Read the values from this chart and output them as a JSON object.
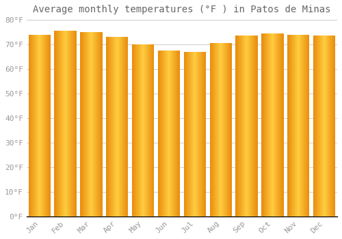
{
  "title": "Average monthly temperatures (°F ) in Patos de Minas",
  "months": [
    "Jan",
    "Feb",
    "Mar",
    "Apr",
    "May",
    "Jun",
    "Jul",
    "Aug",
    "Sep",
    "Oct",
    "Nov",
    "Dec"
  ],
  "values": [
    74,
    75.5,
    75,
    73,
    70,
    67.5,
    67,
    70.5,
    73.5,
    74.5,
    74,
    73.5
  ],
  "bar_color": "#FFAA00",
  "bar_edge_color": "#E08000",
  "background_color": "#FFFFFF",
  "grid_color": "#CCCCCC",
  "text_color": "#999999",
  "title_color": "#666666",
  "ylim": [
    0,
    80
  ],
  "yticks": [
    0,
    10,
    20,
    30,
    40,
    50,
    60,
    70,
    80
  ],
  "ytick_labels": [
    "0°F",
    "10°F",
    "20°F",
    "30°F",
    "40°F",
    "50°F",
    "60°F",
    "70°F",
    "80°F"
  ],
  "figsize": [
    5.0,
    3.5
  ],
  "dpi": 100,
  "title_fontsize": 10,
  "tick_fontsize": 8,
  "font_family": "monospace",
  "bar_width": 0.85,
  "gap_color": "#FFFFFF",
  "bottom_spine_color": "#000000"
}
